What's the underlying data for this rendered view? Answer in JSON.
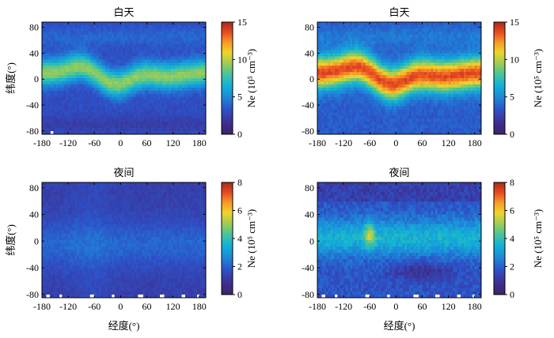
{
  "chart_data": [
    {
      "type": "heatmap",
      "panel": "top-left",
      "title": "白天",
      "xlabel": "",
      "ylabel": "纬度(°)",
      "xlim": [
        -180,
        195
      ],
      "ylim": [
        -85,
        88
      ],
      "x_ticks": [
        "-180",
        "-120",
        "-60",
        "0",
        "60",
        "120",
        "180"
      ],
      "y_ticks": [
        "80",
        "40",
        "0",
        "-40",
        "-80"
      ],
      "colorbar": {
        "label": "Ne (10⁵ cm⁻³)",
        "min": 0,
        "max": 15,
        "ticks": [
          "15",
          "10",
          "5",
          "0"
        ]
      },
      "band_peak_Ne": 9
    },
    {
      "type": "heatmap",
      "panel": "top-right",
      "title": "白天",
      "xlabel": "",
      "ylabel": "",
      "xlim": [
        -180,
        195
      ],
      "ylim": [
        -85,
        88
      ],
      "x_ticks": [
        "-180",
        "-120",
        "-60",
        "0",
        "60",
        "120",
        "180"
      ],
      "y_ticks": [
        "80",
        "40",
        "0",
        "-40",
        "-80"
      ],
      "colorbar": {
        "label": "Ne (10⁵ cm⁻³)",
        "min": 0,
        "max": 15,
        "ticks": [
          "15",
          "10",
          "5",
          "0"
        ]
      },
      "band_peak_Ne": 13
    },
    {
      "type": "heatmap",
      "panel": "bottom-left",
      "title": "夜间",
      "xlabel": "经度(°)",
      "ylabel": "纬度(°)",
      "xlim": [
        -180,
        195
      ],
      "ylim": [
        -85,
        88
      ],
      "x_ticks": [
        "-180",
        "-120",
        "-60",
        "0",
        "60",
        "120",
        "180"
      ],
      "y_ticks": [
        "80",
        "40",
        "0",
        "-40",
        "-80"
      ],
      "colorbar": {
        "label": "Ne (10⁵ cm⁻³)",
        "min": 0,
        "max": 8,
        "ticks": [
          "8",
          "6",
          "4",
          "2",
          "0"
        ]
      },
      "band_peak_Ne": 2
    },
    {
      "type": "heatmap",
      "panel": "bottom-right",
      "title": "夜间",
      "xlabel": "经度(°)",
      "ylabel": "",
      "xlim": [
        -180,
        195
      ],
      "ylim": [
        -85,
        88
      ],
      "x_ticks": [
        "-180",
        "-120",
        "-60",
        "0",
        "60",
        "120",
        "180"
      ],
      "y_ticks": [
        "80",
        "40",
        "0",
        "-40",
        "-80"
      ],
      "colorbar": {
        "label": "Ne (10⁵ cm⁻³)",
        "min": 0,
        "max": 8,
        "ticks": [
          "8",
          "6",
          "4",
          "2",
          "0"
        ]
      },
      "band_peak_Ne": 4
    }
  ]
}
